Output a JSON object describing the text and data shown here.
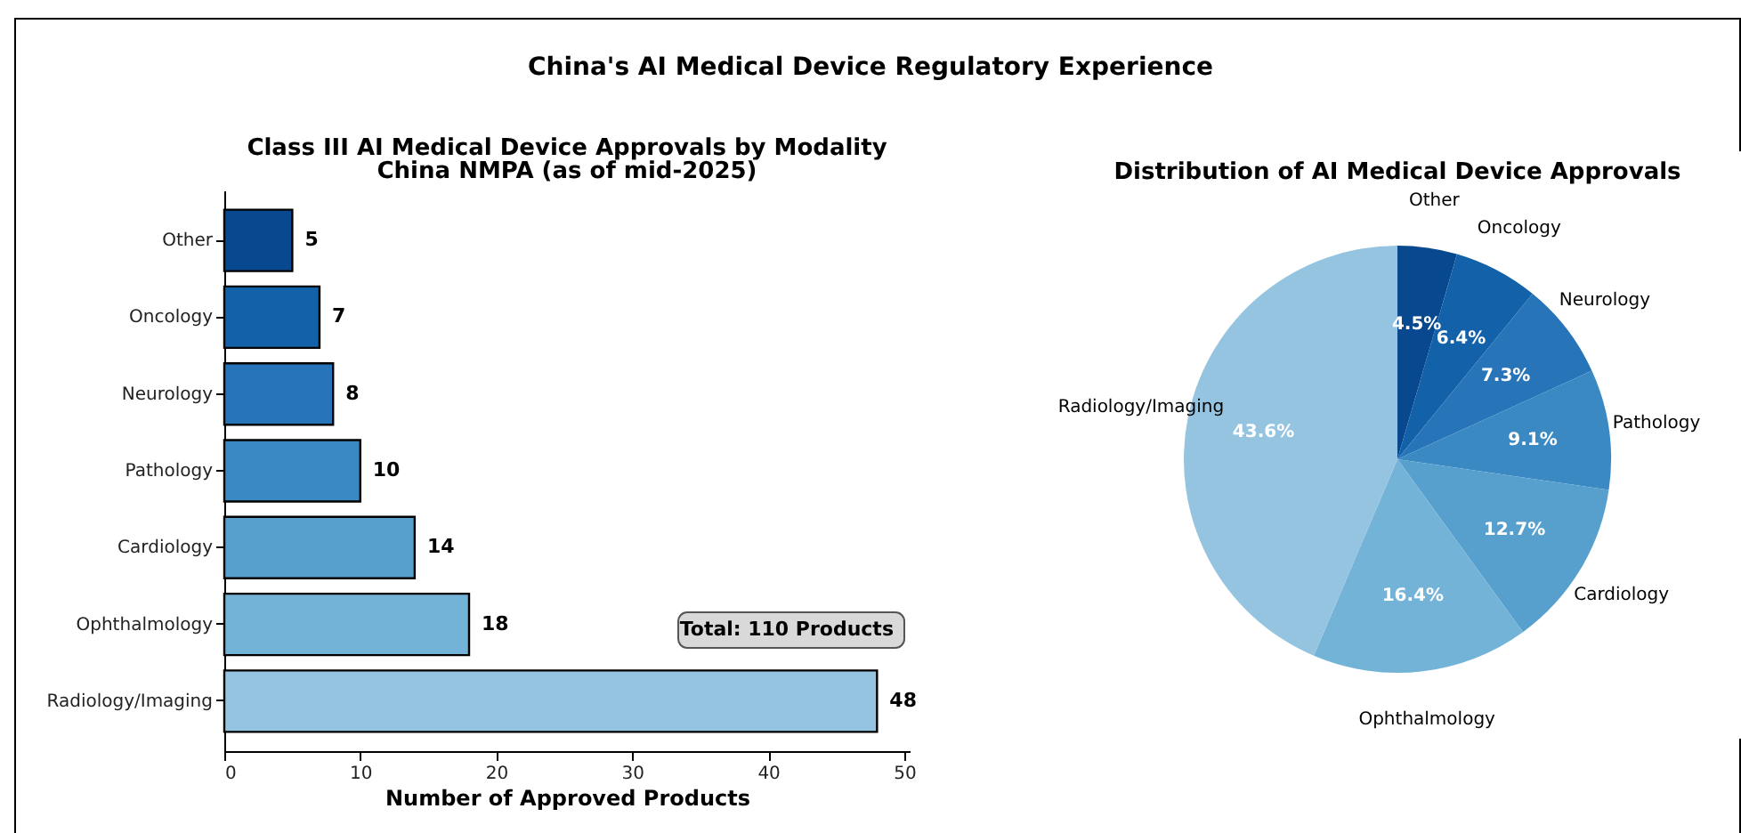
{
  "chart_data": [
    {
      "type": "bar",
      "orientation": "horizontal",
      "title": "Class III AI Medical Device Approvals by Modality",
      "subtitle": "China NMPA (as of mid-2025)",
      "xlabel": "Number of Approved Products",
      "categories": [
        "Other",
        "Oncology",
        "Neurology",
        "Pathology",
        "Cardiology",
        "Ophthalmology",
        "Radiology/Imaging"
      ],
      "values": [
        5,
        7,
        8,
        10,
        14,
        18,
        48
      ],
      "colors": [
        "#08488e",
        "#1361a9",
        "#2874b8",
        "#3a89c3",
        "#57a0ce",
        "#74b3d8",
        "#95c4e0"
      ],
      "xlim": [
        0,
        50.4
      ],
      "xticks": [
        0,
        10,
        20,
        30,
        40,
        50
      ],
      "data_labels": true,
      "grid": false,
      "legend": false,
      "annotations": [
        "China's AI Medical Device Regulatory Experience",
        "Total: 110 Products"
      ]
    },
    {
      "type": "pie",
      "title": "Distribution of AI Medical Device Approvals",
      "categories": [
        "Other",
        "Oncology",
        "Neurology",
        "Pathology",
        "Cardiology",
        "Ophthalmology",
        "Radiology/Imaging"
      ],
      "values": [
        4.5,
        6.4,
        7.3,
        9.1,
        12.7,
        16.4,
        43.6
      ],
      "colors": [
        "#08488e",
        "#1361a9",
        "#2874b8",
        "#3a89c3",
        "#57a0ce",
        "#74b3d8",
        "#95c4e0"
      ],
      "data_labels": true,
      "value_labels": [
        "4.5%",
        "6.4%",
        "7.3%",
        "9.1%",
        "12.7%",
        "16.4%",
        "43.6%"
      ],
      "legend": false
    }
  ]
}
